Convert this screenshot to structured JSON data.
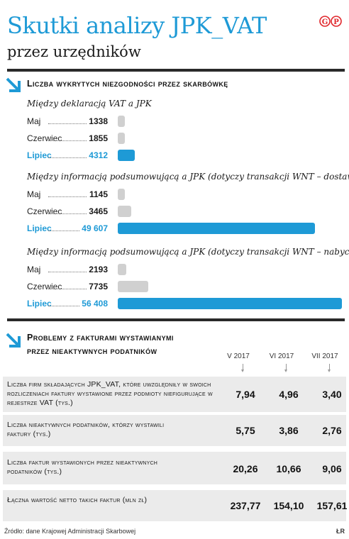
{
  "header": {
    "title": "Skutki analizy JPK_VAT",
    "subtitle": "przez urzędników",
    "logo": "GP"
  },
  "colors": {
    "accent": "#1e9ad6",
    "bar_grey": "#d0d0d0",
    "row_bg": "#ebebeb",
    "logo_red": "#e0262b"
  },
  "section1": {
    "title": "Liczba wykrytych niezgodności przez skarbówkę",
    "icon": "arrow-down-right-icon"
  },
  "section2": {
    "title_line1": "Problemy z fakturami wystawianymi",
    "title_line2": "przez nieaktywnych podatników",
    "icon": "arrow-down-right-icon"
  },
  "chart_data": [
    {
      "type": "bar",
      "orientation": "horizontal",
      "title": "Między deklaracją VAT a JPK",
      "categories": [
        "Maj",
        "Czerwiec",
        "Lipiec"
      ],
      "values": [
        1338,
        1855,
        4312
      ],
      "value_labels": [
        "1338",
        "1855",
        "4312"
      ],
      "highlight": "Lipiec",
      "xlim": [
        0,
        56408
      ]
    },
    {
      "type": "bar",
      "orientation": "horizontal",
      "title": "Między informacją podsumowującą a JPK  (dotyczy transakcji WNT – dostawy)",
      "categories": [
        "Maj",
        "Czerwiec",
        "Lipiec"
      ],
      "values": [
        1145,
        3465,
        49607
      ],
      "value_labels": [
        "1145",
        "3465",
        "49 607"
      ],
      "highlight": "Lipiec",
      "xlim": [
        0,
        56408
      ]
    },
    {
      "type": "bar",
      "orientation": "horizontal",
      "title": "Między informacją podsumowującą a JPK (dotyczy transakcji WNT – nabycia)",
      "categories": [
        "Maj",
        "Czerwiec",
        "Lipiec"
      ],
      "values": [
        2193,
        7735,
        56408
      ],
      "value_labels": [
        "2193",
        "7735",
        "56 408"
      ],
      "highlight": "Lipiec",
      "xlim": [
        0,
        56408
      ]
    }
  ],
  "table": {
    "columns": [
      "V 2017",
      "VI 2017",
      "VII 2017"
    ],
    "rows": [
      {
        "label": "Liczba firm składających JPK_VAT, które uwzględniły w swoich rozliczeniach faktury wystawione przez podmioty niefigurujące w rejestrze VAT (tys.)",
        "values": [
          "7,94",
          "4,96",
          "3,40"
        ]
      },
      {
        "label": "Liczba nieaktywnych podatników, którzy wystawili faktury (tys.)",
        "values": [
          "5,75",
          "3,86",
          "2,76"
        ]
      },
      {
        "label": "Liczba faktur wystawionych przez nieaktywnych podatników (tys.)",
        "values": [
          "20,26",
          "10,66",
          "9,06"
        ]
      },
      {
        "label": "Łączna wartość netto takich faktur (mln zł)",
        "values": [
          "237,77",
          "154,10",
          "157,61"
        ]
      }
    ]
  },
  "footer": {
    "source": "Źródło: dane Krajowej Administracji Skarbowej",
    "credit": "ŁR"
  }
}
